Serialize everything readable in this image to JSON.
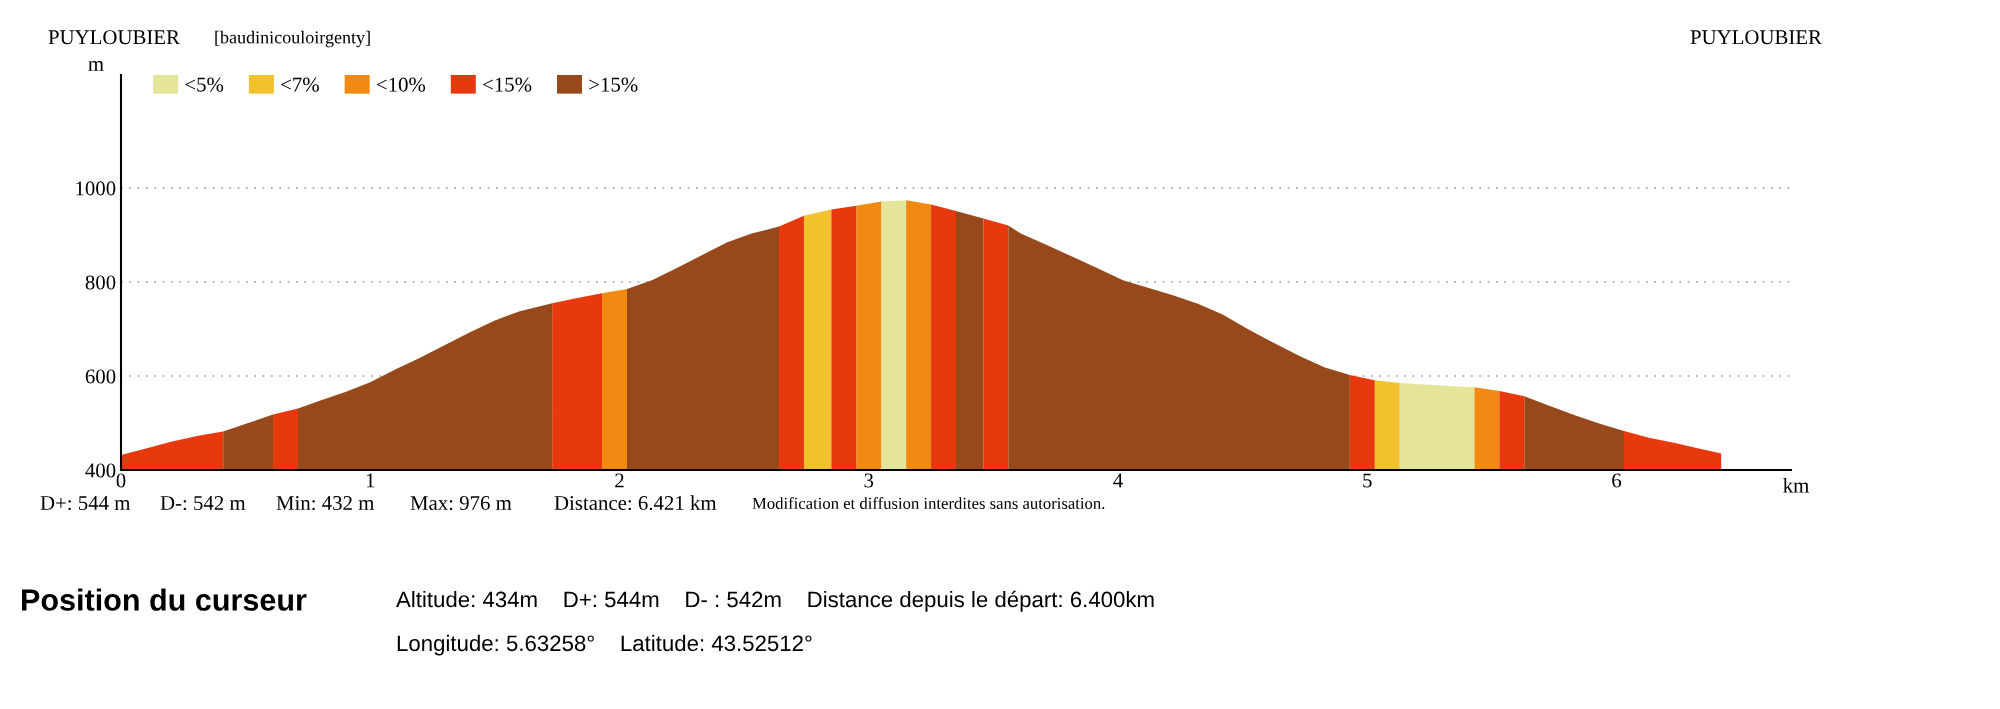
{
  "chart_data": {
    "type": "area",
    "xlabel": "km",
    "ylabel": "m",
    "annotations": [
      "PUYLOUBIER",
      "[baudinicouloirgenty]",
      "PUYLOUBIER",
      "D+: 544 m",
      "D-: 542 m",
      "Min: 432 m",
      "Max: 976 m",
      "Distance: 6.421 km",
      "Modification et diffusion interdites sans autorisation.",
      "Position du curseur",
      "Altitude: 434m    D+: 544m    D- : 542m    Distance depuis le départ: 6.400km",
      "Longitude: 5.63258°    Latitude: 43.52512°"
    ],
    "series": [
      {
        "name": "<5%",
        "color": "#e5e59a",
        "x": [
          3.05,
          3.15,
          4.2,
          5.13,
          5.23,
          5.33,
          5.43
        ],
        "values": [
          971,
          974,
          null,
          585,
          582,
          579,
          576
        ]
      },
      {
        "name": "<7%",
        "color": "#f2c12e",
        "x": [
          2.74,
          2.85,
          4.0,
          5.03,
          5.13
        ],
        "values": [
          941,
          954,
          null,
          591,
          585
        ]
      },
      {
        "name": "<10%",
        "color": "#f08a12",
        "x": [
          1.93,
          2.03,
          2.5,
          2.95,
          3.05,
          3.1,
          3.15,
          3.25,
          4.3,
          5.43,
          5.53
        ],
        "values": [
          776,
          785,
          null,
          962,
          971,
          null,
          974,
          965,
          null,
          576,
          568
        ]
      },
      {
        "name": "<15%",
        "color": "#e8390e",
        "x": [
          0,
          0.1,
          0.2,
          0.31,
          0.41,
          0.5,
          0.61,
          0.71,
          1.2,
          1.73,
          1.83,
          1.93,
          2.3,
          2.64,
          2.74,
          2.8,
          2.85,
          2.95,
          3.1,
          3.25,
          3.35,
          3.4,
          3.46,
          3.56,
          4.2,
          4.93,
          5.03,
          5.3,
          5.53,
          5.63,
          5.8,
          6.03,
          6.13,
          6.23,
          6.33,
          6.42
        ],
        "values": [
          432,
          446,
          460,
          473,
          482,
          null,
          518,
          531,
          null,
          755,
          766,
          776,
          null,
          918,
          941,
          null,
          954,
          962,
          null,
          965,
          951,
          null,
          935,
          920,
          null,
          602,
          591,
          null,
          568,
          557,
          null,
          483,
          469,
          458,
          446,
          435
        ]
      },
      {
        "name": ">15%",
        "color": "#97491b",
        "x": [
          0.41,
          0.51,
          0.61,
          0.65,
          0.71,
          0.8,
          0.9,
          1.0,
          1.1,
          1.2,
          1.3,
          1.4,
          1.5,
          1.6,
          1.73,
          1.9,
          2.03,
          2.13,
          2.23,
          2.33,
          2.43,
          2.53,
          2.64,
          3.0,
          3.35,
          3.46,
          3.5,
          3.56,
          3.61,
          3.71,
          3.82,
          3.92,
          4.02,
          4.12,
          4.22,
          4.32,
          4.42,
          4.52,
          4.63,
          4.73,
          4.83,
          4.93,
          5.3,
          5.63,
          5.73,
          5.83,
          5.93,
          6.03
        ],
        "values": [
          482,
          500,
          518,
          null,
          531,
          548,
          566,
          587,
          614,
          639,
          666,
          693,
          718,
          738,
          755,
          null,
          785,
          804,
          830,
          857,
          884,
          903,
          918,
          null,
          951,
          935,
          null,
          920,
          903,
          880,
          853,
          829,
          804,
          788,
          772,
          754,
          731,
          700,
          669,
          642,
          618,
          602,
          null,
          557,
          537,
          517,
          499,
          483
        ]
      }
    ],
    "xlim": [
      0,
      6.7
    ],
    "ylim": [
      400,
      1240
    ],
    "xticks": [
      0,
      1,
      2,
      3,
      4,
      5,
      6
    ],
    "yticks": [
      400,
      600,
      800,
      1000
    ],
    "grid": "y",
    "legend": "top left"
  }
}
